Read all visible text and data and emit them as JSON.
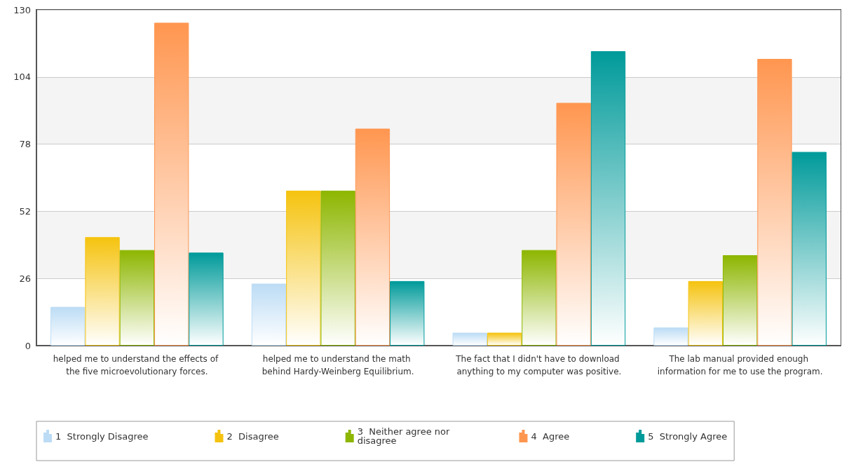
{
  "chart_data": {
    "type": "bar",
    "categories": [
      "helped me to understand the effects of the five microevolutionary forces.",
      "helped me to understand the math behind Hardy-Weinberg Equilibrium.",
      "The fact that I didn't have to download anything to my computer was positive.",
      "The lab manual provided enough information for me to use the program."
    ],
    "series": [
      {
        "name": "1  Strongly Disagree",
        "color": "#bcdcf5",
        "values": [
          15,
          24,
          5,
          7
        ]
      },
      {
        "name": "2  Disagree",
        "color": "#f5c30f",
        "values": [
          42,
          60,
          5,
          25
        ]
      },
      {
        "name": "3  Neither agree nor disagree",
        "color": "#8db600",
        "values": [
          37,
          60,
          37,
          35
        ]
      },
      {
        "name": "4  Agree",
        "color": "#ff9650",
        "values": [
          125,
          84,
          94,
          111
        ]
      },
      {
        "name": "5  Strongly Agree",
        "color": "#009a9a",
        "values": [
          36,
          25,
          114,
          75
        ]
      }
    ],
    "ylim": [
      0,
      130
    ],
    "yticks": [
      0,
      26,
      52,
      78,
      104,
      130
    ],
    "grid": "y",
    "legend": "bottom"
  }
}
